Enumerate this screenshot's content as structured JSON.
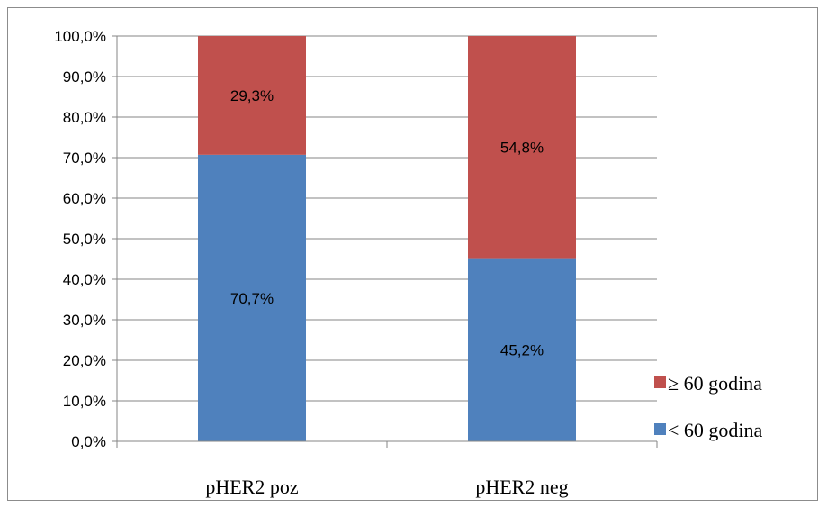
{
  "chart_data": {
    "type": "bar",
    "stacked": true,
    "categories": [
      "pHER2 poz",
      "pHER2 neg"
    ],
    "series": [
      {
        "name": "< 60 godina",
        "values": [
          70.7,
          45.2
        ],
        "labels": [
          "70,7%",
          "45,2%"
        ],
        "color": "#4f81bd"
      },
      {
        "name": "≥ 60 godina",
        "values": [
          29.3,
          54.8
        ],
        "labels": [
          "29,3%",
          "54,8%"
        ],
        "color": "#c0504d"
      }
    ],
    "yticks": [
      "0,0%",
      "10,0%",
      "20,0%",
      "30,0%",
      "40,0%",
      "50,0%",
      "60,0%",
      "70,0%",
      "80,0%",
      "90,0%",
      "100,0%"
    ],
    "ylim": [
      0,
      100
    ],
    "grid": true,
    "legend": "right",
    "legend_order": [
      "≥ 60 godina",
      "< 60 godina"
    ],
    "title": "",
    "xlabel": "",
    "ylabel": ""
  }
}
